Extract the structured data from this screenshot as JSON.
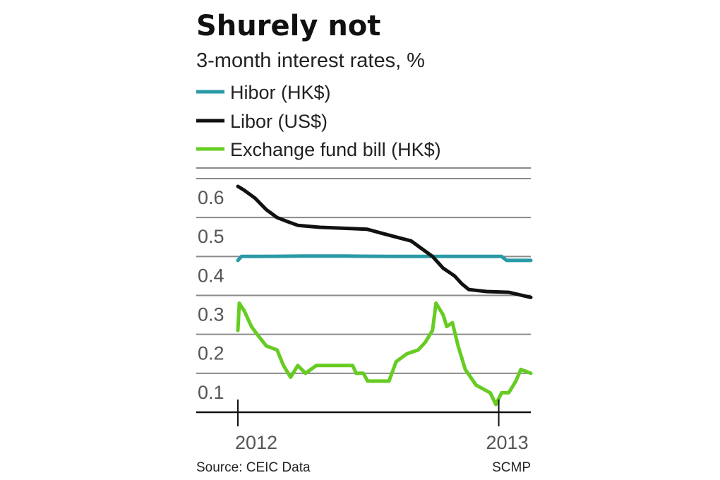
{
  "chart_data": {
    "type": "line",
    "title": "Shurely not",
    "subtitle": "3-month interest rates, %",
    "source": "Source: CEIC Data",
    "credit": "SCMP",
    "ylim": [
      0,
      0.6
    ],
    "yticks": [
      0.1,
      0.2,
      0.3,
      0.4,
      0.5,
      0.6
    ],
    "ytick_labels": [
      "0.1",
      "0.2",
      "0.3",
      "0.4",
      "0.5",
      "0.6"
    ],
    "xlim": [
      "2012-01-01",
      "2013-02-15"
    ],
    "xticks": [
      "2012-01-01",
      "2013-01-01"
    ],
    "xtick_labels": [
      "2012",
      "2013"
    ],
    "grid": true,
    "legend_position": "top-left",
    "series": [
      {
        "name": "Hibor (HK$)",
        "color": "#2a9aa6",
        "points": [
          [
            "2012-01-01",
            0.39
          ],
          [
            "2012-01-06",
            0.4
          ],
          [
            "2012-02-01",
            0.4
          ],
          [
            "2012-04-01",
            0.401
          ],
          [
            "2012-06-01",
            0.401
          ],
          [
            "2012-08-01",
            0.4
          ],
          [
            "2012-10-01",
            0.4
          ],
          [
            "2012-12-01",
            0.4
          ],
          [
            "2013-01-05",
            0.4
          ],
          [
            "2013-01-12",
            0.39
          ],
          [
            "2013-02-15",
            0.39
          ]
        ]
      },
      {
        "name": "Libor (US$)",
        "color": "#111111",
        "points": [
          [
            "2012-01-01",
            0.58
          ],
          [
            "2012-01-10",
            0.57
          ],
          [
            "2012-01-25",
            0.55
          ],
          [
            "2012-02-10",
            0.52
          ],
          [
            "2012-02-25",
            0.5
          ],
          [
            "2012-03-10",
            0.49
          ],
          [
            "2012-03-25",
            0.48
          ],
          [
            "2012-04-25",
            0.475
          ],
          [
            "2012-06-30",
            0.47
          ],
          [
            "2012-07-20",
            0.46
          ],
          [
            "2012-08-10",
            0.45
          ],
          [
            "2012-08-31",
            0.44
          ],
          [
            "2012-09-15",
            0.42
          ],
          [
            "2012-09-30",
            0.4
          ],
          [
            "2012-10-15",
            0.37
          ],
          [
            "2012-10-31",
            0.35
          ],
          [
            "2012-11-10",
            0.33
          ],
          [
            "2012-11-20",
            0.315
          ],
          [
            "2012-12-15",
            0.31
          ],
          [
            "2013-01-15",
            0.308
          ],
          [
            "2013-02-15",
            0.295
          ]
        ]
      },
      {
        "name": "Exchange fund bill (HK$)",
        "color": "#66cc22",
        "points": [
          [
            "2012-01-01",
            0.21
          ],
          [
            "2012-01-03",
            0.28
          ],
          [
            "2012-01-10",
            0.26
          ],
          [
            "2012-01-20",
            0.22
          ],
          [
            "2012-01-28",
            0.2
          ],
          [
            "2012-02-10",
            0.17
          ],
          [
            "2012-02-25",
            0.16
          ],
          [
            "2012-03-05",
            0.12
          ],
          [
            "2012-03-15",
            0.09
          ],
          [
            "2012-03-25",
            0.12
          ],
          [
            "2012-04-05",
            0.1
          ],
          [
            "2012-04-20",
            0.12
          ],
          [
            "2012-05-10",
            0.12
          ],
          [
            "2012-06-10",
            0.12
          ],
          [
            "2012-06-15",
            0.1
          ],
          [
            "2012-06-25",
            0.1
          ],
          [
            "2012-07-01",
            0.08
          ],
          [
            "2012-07-31",
            0.08
          ],
          [
            "2012-08-10",
            0.13
          ],
          [
            "2012-08-25",
            0.15
          ],
          [
            "2012-09-10",
            0.16
          ],
          [
            "2012-09-20",
            0.18
          ],
          [
            "2012-09-30",
            0.21
          ],
          [
            "2012-10-05",
            0.28
          ],
          [
            "2012-10-15",
            0.25
          ],
          [
            "2012-10-20",
            0.22
          ],
          [
            "2012-10-28",
            0.23
          ],
          [
            "2012-11-05",
            0.17
          ],
          [
            "2012-11-15",
            0.11
          ],
          [
            "2012-11-30",
            0.07
          ],
          [
            "2012-12-10",
            0.06
          ],
          [
            "2012-12-20",
            0.05
          ],
          [
            "2012-12-28",
            0.02
          ],
          [
            "2013-01-05",
            0.05
          ],
          [
            "2013-01-15",
            0.05
          ],
          [
            "2013-01-25",
            0.08
          ],
          [
            "2013-02-01",
            0.11
          ],
          [
            "2013-02-15",
            0.1
          ]
        ]
      }
    ]
  }
}
